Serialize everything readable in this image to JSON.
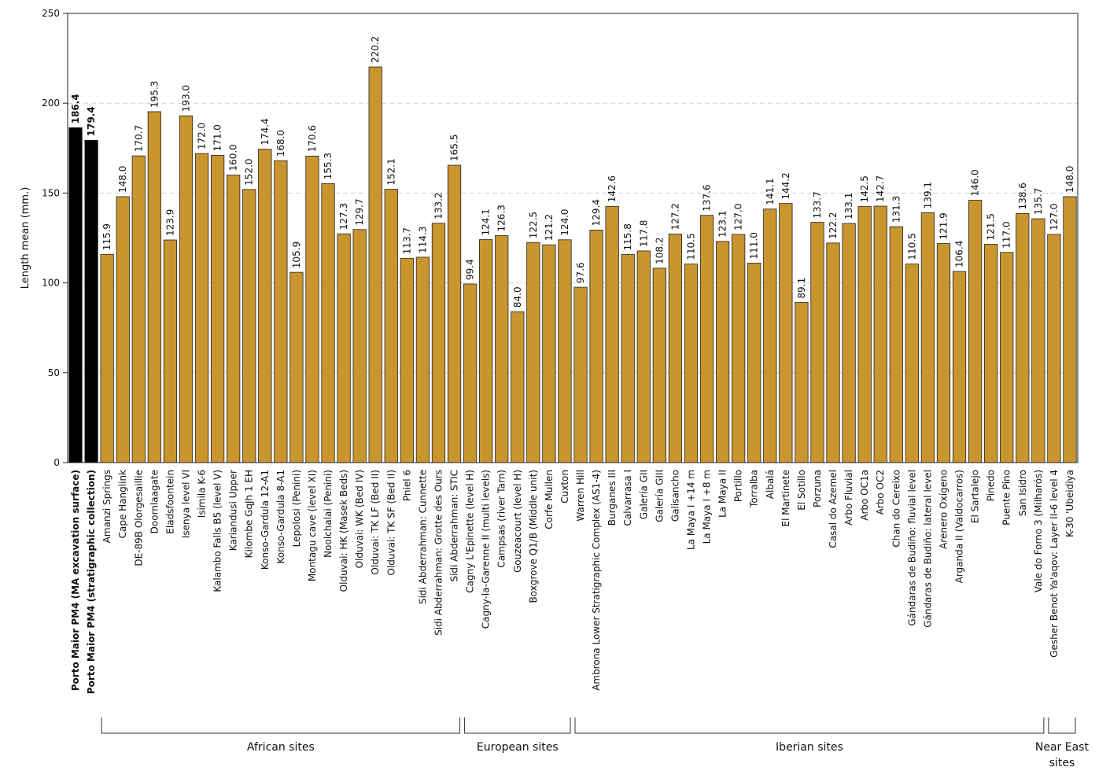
{
  "chart_data": {
    "type": "bar",
    "title": "",
    "xlabel": "",
    "ylabel": "Length mean (mm.)",
    "ylim": [
      0,
      250
    ],
    "yticks": [
      0,
      50,
      100,
      150,
      200,
      250
    ],
    "grid": "horizontal dashed",
    "colors": {
      "highlight": "#000000",
      "default": "#C9952F",
      "gridline": "#cfcfcf"
    },
    "categories": [
      "Porto Maior PM4 (MA excavation surface)",
      "Porto Maior PM4 (stratigraphic collection)",
      "Amanzi Springs",
      "Cape Hanglink",
      "DE-89B Olorgesaillie",
      "Doornlaagate",
      "Eladsfoontein",
      "Isenya level VI",
      "Isimila K-6",
      "Kalambo Falls B5 (level V)",
      "Kariandusi Upper",
      "Kilombe GqJh 1 EH",
      "Konso-Gardula 12-A1",
      "Konso-Gardula 8-A1",
      "Lepolosi (Penini)",
      "Montagu cave (level XI)",
      "Noolchalai (Penini)",
      "Olduvai: HK (Masek Beds)",
      "Olduvai: WK (Bed IV)",
      "Olduvai: TK LF (Bed II)",
      "Olduvai: TK SF (Bed II)",
      "Pniel 6",
      "Sidi Abderrahman: Cunnette",
      "Sidi Abderrahman: Grotte des Ours",
      "Sidi Abderrahman: STIC",
      "Cagny L'Epinette (level H)",
      "Cagny-la-Garenne II (multi levels)",
      "Campsas (river Tarn)",
      "Gouzeacourt (level H)",
      "Boxgrove Q1/B (Middle unit)",
      "Corfe Mullen",
      "Cuxton",
      "Warren Hill",
      "Ambrona Lower Stratigraphic Complex (AS1-4)",
      "Burganes III",
      "Calvarrasa I",
      "Galería GII",
      "Galería GIII",
      "Galisancho",
      "La Maya I +14 m",
      "La Maya I +8 m",
      "La Maya II",
      "Portillo",
      "Torralba",
      "Albalá",
      "El Martinete",
      "El Sotillo",
      "Porzuna",
      "Casal do Azemel",
      "Arbo Fluvial",
      "Arbo OC1a",
      "Arbo OC2",
      "Chan do Cereixo",
      "Gándaras de Budiño: fluvial level",
      "Gándaras de Budiño: lateral level",
      "Arenero Oxígeno",
      "Arganda II (Valdocarros)",
      "El Sartalejo",
      "Pinedo",
      "Puente Pino",
      "San Isidro",
      "Vale do Forno 3 (Milharós)",
      "Gesher Benot Ya'aqov: Layer II-6 level 4",
      "K-30 'Ubeidiya"
    ],
    "values": [
      186.4,
      179.4,
      115.9,
      148.0,
      170.7,
      195.3,
      123.9,
      193.0,
      172.0,
      171.0,
      160.0,
      152.0,
      174.4,
      168.0,
      105.9,
      170.6,
      155.3,
      127.3,
      129.7,
      220.2,
      152.1,
      113.7,
      114.3,
      133.2,
      165.5,
      99.4,
      124.1,
      126.3,
      84.0,
      122.5,
      121.2,
      124.0,
      97.6,
      129.4,
      142.6,
      115.8,
      117.8,
      108.2,
      127.2,
      110.5,
      137.6,
      123.1,
      127.0,
      111.0,
      141.1,
      144.2,
      89.1,
      133.7,
      122.2,
      133.1,
      142.5,
      142.7,
      131.3,
      110.5,
      139.1,
      121.9,
      106.4,
      146.0,
      121.5,
      117.0,
      138.6,
      135.7,
      127.0,
      148.0
    ],
    "value_labels": [
      "186.4",
      "179.4",
      "115.9",
      "148.0",
      "170.7",
      "195.3",
      "123.9",
      "193.0",
      "172.0",
      "171.0",
      "160.0",
      "152.0",
      "174.4",
      "168.0",
      "105.9",
      "170.6",
      "155.3",
      "127.3",
      "129.7",
      "220.2",
      "152.1",
      "113.7",
      "114.3",
      "133.2",
      "165.5",
      "99.4",
      "124.1",
      "126.3",
      "84.0",
      "122.5",
      "121.2",
      "124.0",
      "97.6",
      "129.4",
      "142.6",
      "115.8",
      "117.8",
      "108.2",
      "127.2",
      "110.5",
      "137.6",
      "123.1",
      "127.0",
      "111.0",
      "141.1",
      "144.2",
      "89.1",
      "133.7",
      "122.2",
      "133.1",
      "142.5",
      "142.7",
      "131.3",
      "110.5",
      "139.1",
      "121.9",
      "106.4",
      "146.0",
      "121.5",
      "117.0",
      "138.6",
      "135.7",
      "127.0",
      "148.0"
    ],
    "highlighted": [
      0,
      1
    ],
    "groups": [
      {
        "label": "African sites",
        "from": 2,
        "to": 24
      },
      {
        "label": "European sites",
        "from": 25,
        "to": 31
      },
      {
        "label": "Iberian sites",
        "from": 32,
        "to": 61
      },
      {
        "label": "Near East sites",
        "from": 62,
        "to": 63
      }
    ]
  }
}
